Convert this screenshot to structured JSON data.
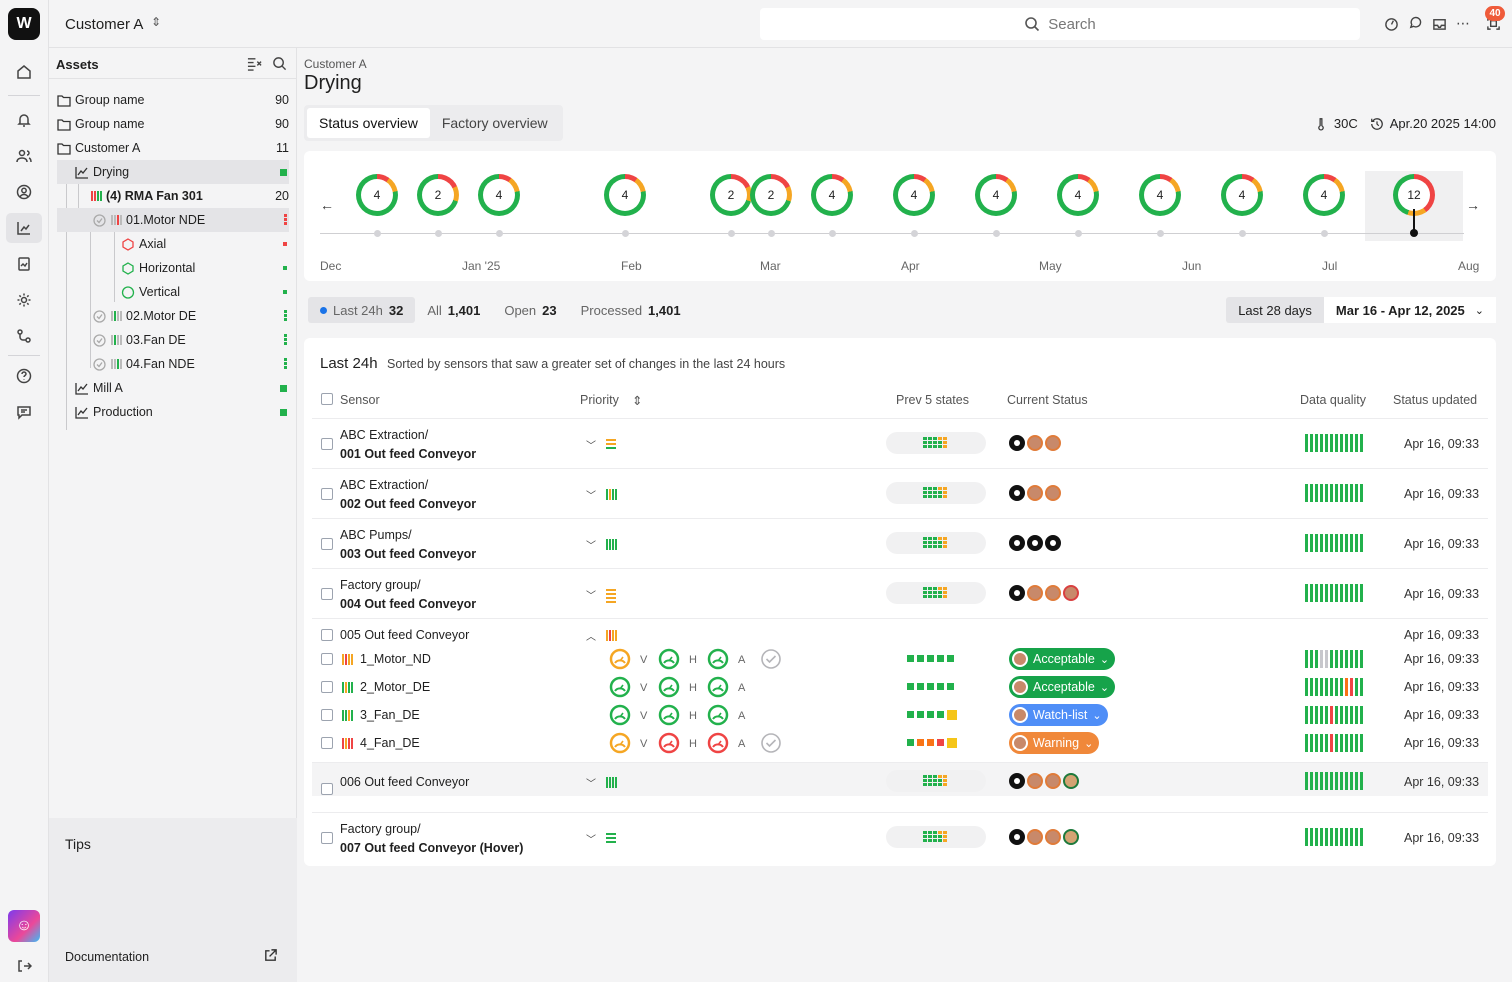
{
  "top": {
    "customer": "Customer A",
    "search_placeholder": "Search",
    "notifications": "40"
  },
  "tree": {
    "title": "Assets",
    "rows": [
      {
        "label": "Group name",
        "count": "90"
      },
      {
        "label": "Group name",
        "count": "90"
      },
      {
        "label": "Customer A",
        "count": "11"
      },
      {
        "label": "Drying"
      },
      {
        "label": "(4) RMA Fan 301",
        "count": "20"
      },
      {
        "label": "01.Motor NDE"
      },
      {
        "label": "Axial"
      },
      {
        "label": "Horizontal"
      },
      {
        "label": "Vertical"
      },
      {
        "label": "02.Motor DE"
      },
      {
        "label": "03.Fan DE"
      },
      {
        "label": "04.Fan NDE"
      },
      {
        "label": "Mill A"
      },
      {
        "label": "Production"
      }
    ],
    "tips": "Tips",
    "documentation": "Documentation"
  },
  "page": {
    "breadcrumb": "Customer A",
    "title": "Drying",
    "temperature": "30C",
    "datetime": "Apr.20 2025 14:00"
  },
  "tabs": [
    "Status overview",
    "Factory overview"
  ],
  "timeline": {
    "months": [
      "Dec",
      "Jan '25",
      "Feb",
      "Mar",
      "Apr",
      "May",
      "Jun",
      "Jul",
      "Aug"
    ],
    "events": [
      "4",
      "2",
      "4",
      "4",
      "2",
      "2",
      "4",
      "4",
      "4",
      "4",
      "4",
      "4",
      "4",
      "12"
    ]
  },
  "filters": {
    "last24": {
      "label": "Last 24h",
      "count": "32"
    },
    "all": {
      "label": "All",
      "count": "1,401"
    },
    "open": {
      "label": "Open",
      "count": "23"
    },
    "processed": {
      "label": "Processed",
      "count": "1,401"
    },
    "period": "Last 28 days",
    "range": "Mar 16 - Apr 12, 2025"
  },
  "list": {
    "title": "Last 24h",
    "subtitle": "Sorted by sensors that saw a greater set of changes in the last 24 hours",
    "columns": {
      "sensor": "Sensor",
      "priority": "Priority",
      "prev": "Prev 5 states",
      "current": "Current Status",
      "dq": "Data quality",
      "updated": "Status updated"
    },
    "rows": [
      {
        "group": "ABC Extraction/",
        "name": "001 Out feed Conveyor",
        "updated": "Apr 16, 09:33"
      },
      {
        "group": "ABC Extraction/",
        "name": "002 Out feed Conveyor",
        "updated": "Apr 16, 09:33"
      },
      {
        "group": "ABC Pumps/",
        "name": "003 Out feed Conveyor",
        "updated": "Apr 16, 09:33"
      },
      {
        "group": "Factory group/",
        "name": "004 Out feed Conveyor",
        "updated": "Apr 16, 09:33"
      },
      {
        "name": "005 Out feed Conveyor",
        "updated": "Apr 16, 09:33"
      },
      {
        "name": "006 Out feed Conveyor",
        "updated": "Apr 16, 09:33"
      },
      {
        "group": "Factory group/",
        "name": "007 Out feed Conveyor (Hover)",
        "updated": "Apr 16, 09:33"
      }
    ],
    "sub": [
      {
        "name": "1_Motor_ND",
        "status": "Acceptable",
        "updated": "Apr 16, 09:33"
      },
      {
        "name": "2_Motor_DE",
        "status": "Acceptable",
        "updated": "Apr 16, 09:33"
      },
      {
        "name": "3_Fan_DE",
        "status": "Watch-list",
        "updated": "Apr 16, 09:33"
      },
      {
        "name": "4_Fan_DE",
        "status": "Warning",
        "updated": "Apr 16, 09:33"
      }
    ],
    "axis_labels": {
      "v": "V",
      "h": "H",
      "a": "A"
    }
  },
  "colors": {
    "ok": "#22b14c",
    "warn": "#f5a623",
    "alert": "#ef4444",
    "watch": "#4f8ef7"
  }
}
